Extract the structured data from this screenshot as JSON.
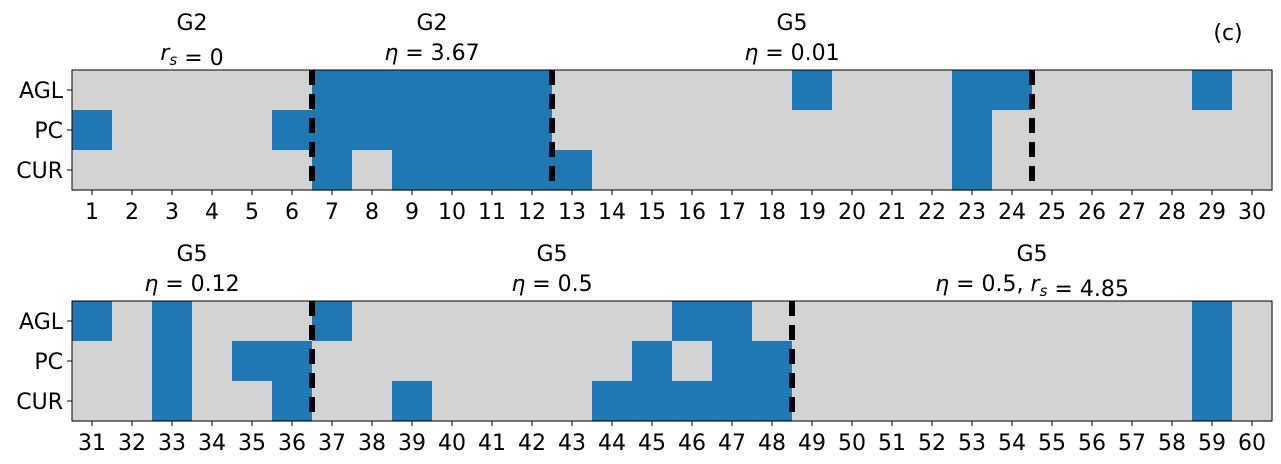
{
  "panel_label": "(c)",
  "colors": {
    "on": "#1f77b4",
    "off": "#d3d3d3",
    "divider": "#000000"
  },
  "chart_data": [
    {
      "type": "heatmap",
      "rows": [
        "AGL",
        "PC",
        "CUR"
      ],
      "x": [
        1,
        2,
        3,
        4,
        5,
        6,
        7,
        8,
        9,
        10,
        11,
        12,
        13,
        14,
        15,
        16,
        17,
        18,
        19,
        20,
        21,
        22,
        23,
        24,
        25,
        26,
        27,
        28,
        29,
        30
      ],
      "active": {
        "AGL": [
          7,
          8,
          9,
          10,
          11,
          12,
          19,
          23,
          24,
          29
        ],
        "PC": [
          1,
          6,
          7,
          8,
          9,
          10,
          11,
          12,
          23
        ],
        "CUR": [
          7,
          9,
          10,
          11,
          12,
          13,
          23
        ]
      },
      "groups": [
        {
          "title": "G2",
          "param": "r_s = 0",
          "range": [
            1,
            6
          ]
        },
        {
          "title": "G2",
          "param": "η = 3.67",
          "range": [
            7,
            12
          ]
        },
        {
          "title": "G5",
          "param": "η = 0.01",
          "range": [
            13,
            24
          ]
        }
      ],
      "dividers": [
        6.5,
        12.5,
        24.5
      ]
    },
    {
      "type": "heatmap",
      "rows": [
        "AGL",
        "PC",
        "CUR"
      ],
      "x": [
        31,
        32,
        33,
        34,
        35,
        36,
        37,
        38,
        39,
        40,
        41,
        42,
        43,
        44,
        45,
        46,
        47,
        48,
        49,
        50,
        51,
        52,
        53,
        54,
        55,
        56,
        57,
        58,
        59,
        60
      ],
      "active": {
        "AGL": [
          31,
          33,
          37,
          46,
          47,
          59
        ],
        "PC": [
          33,
          35,
          36,
          45,
          47,
          48,
          59
        ],
        "CUR": [
          33,
          36,
          39,
          44,
          45,
          46,
          47,
          48,
          59
        ]
      },
      "groups": [
        {
          "title": "G5",
          "param": "η = 0.12",
          "range": [
            31,
            36
          ]
        },
        {
          "title": "G5",
          "param": "η = 0.5",
          "range": [
            37,
            48
          ]
        },
        {
          "title": "G5",
          "param": "η = 0.5, r_s = 4.85",
          "range": [
            49,
            60
          ]
        }
      ],
      "dividers": [
        36.5,
        48.5
      ]
    }
  ]
}
